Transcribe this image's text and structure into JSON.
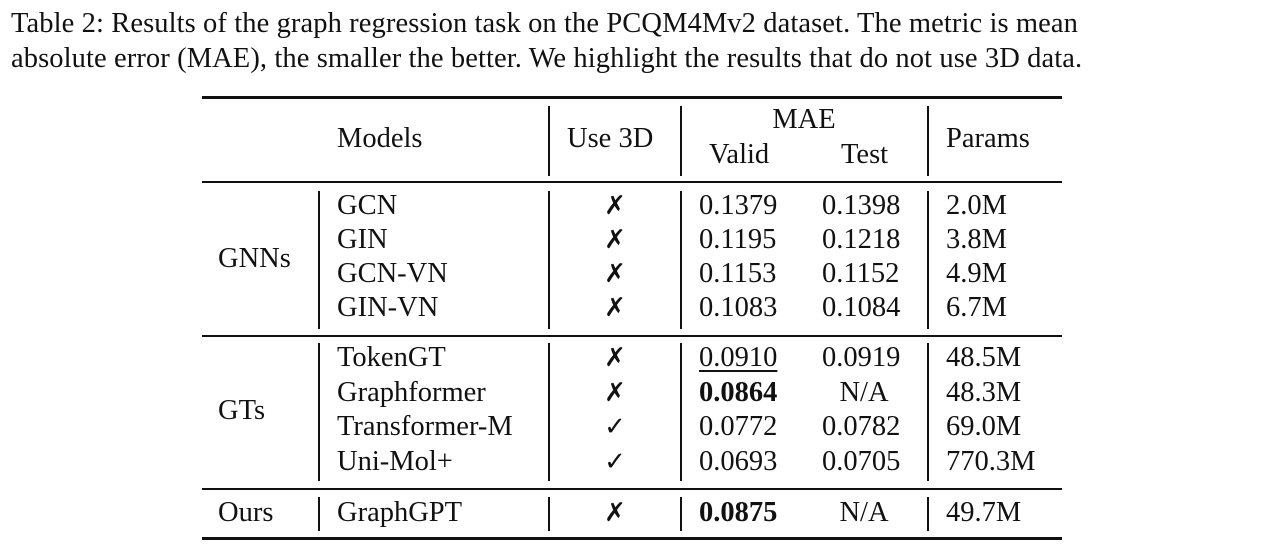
{
  "caption": {
    "line1": "Table 2: Results of the graph regression task on the PCQM4Mv2 dataset.  The metric is mean",
    "line2": "absolute error (MAE), the smaller the better. We highlight the results that do not use 3D data."
  },
  "header": {
    "models": "Models",
    "use3d": "Use 3D",
    "mae": "MAE",
    "valid": "Valid",
    "test": "Test",
    "params": "Params"
  },
  "groups": [
    {
      "name": "GNNs",
      "rows": [
        {
          "model": "GCN",
          "use3d": "✗",
          "valid": "0.1379",
          "test": "0.1398",
          "params": "2.0M"
        },
        {
          "model": "GIN",
          "use3d": "✗",
          "valid": "0.1195",
          "test": "0.1218",
          "params": "3.8M"
        },
        {
          "model": "GCN-VN",
          "use3d": "✗",
          "valid": "0.1153",
          "test": "0.1152",
          "params": "4.9M"
        },
        {
          "model": "GIN-VN",
          "use3d": "✗",
          "valid": "0.1083",
          "test": "0.1084",
          "params": "6.7M"
        }
      ]
    },
    {
      "name": "GTs",
      "rows": [
        {
          "model": "TokenGT",
          "use3d": "✗",
          "valid": "0.0910",
          "test": "0.0919",
          "params": "48.5M",
          "valid_style": "underline"
        },
        {
          "model": "Graphformer",
          "use3d": "✗",
          "valid": "0.0864",
          "test": "N/A",
          "params": "48.3M",
          "valid_style": "bold"
        },
        {
          "model": "Transformer-M",
          "use3d": "✓",
          "valid": "0.0772",
          "test": "0.0782",
          "params": "69.0M"
        },
        {
          "model": "Uni-Mol+",
          "use3d": "✓",
          "valid": "0.0693",
          "test": "0.0705",
          "params": "770.3M"
        }
      ]
    },
    {
      "name": "Ours",
      "rows": [
        {
          "model": "GraphGPT",
          "use3d": "✗",
          "valid": "0.0875",
          "test": "N/A",
          "params": "49.7M",
          "valid_style": "bold"
        }
      ]
    }
  ]
}
